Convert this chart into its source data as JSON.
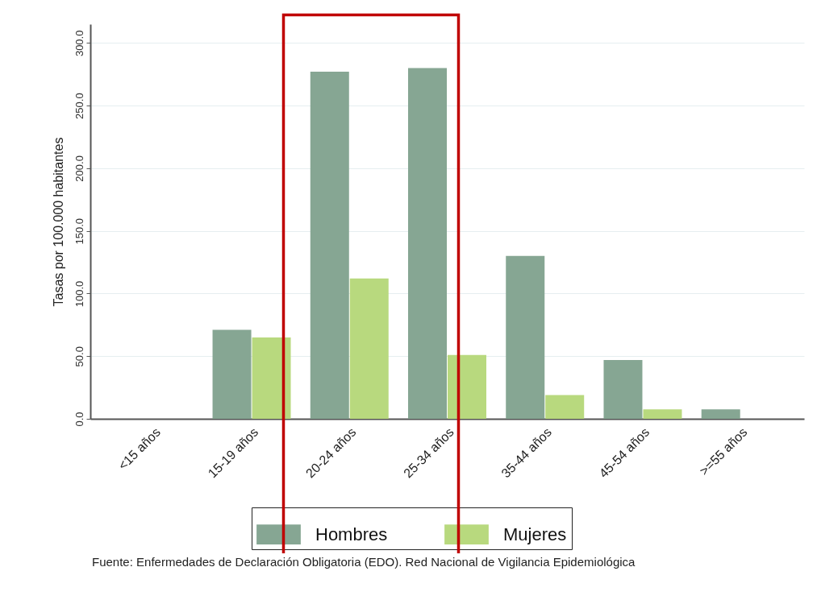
{
  "chart_data": {
    "type": "bar",
    "ylabel": "Tasas por 100.000 habitantes",
    "categories": [
      "<15 años",
      "15-19 años",
      "20-24 años",
      "25-34 años",
      "35-44 años",
      "45-54 años",
      ">=55 años"
    ],
    "series": [
      {
        "name": "Hombres",
        "color": "#86a693",
        "values": [
          0,
          71,
          277,
          280,
          130,
          47,
          7.5
        ]
      },
      {
        "name": "Mujeres",
        "color": "#b8d97e",
        "values": [
          0,
          65,
          112,
          51,
          19,
          7.5,
          0
        ]
      }
    ],
    "ylim": [
      0,
      315
    ],
    "yticks": [
      {
        "value": 0,
        "label": "0.0"
      },
      {
        "value": 50,
        "label": "50.0"
      },
      {
        "value": 100,
        "label": "100.0"
      },
      {
        "value": 150,
        "label": "150.0"
      },
      {
        "value": 200,
        "label": "200.0"
      },
      {
        "value": 250,
        "label": "250.0"
      },
      {
        "value": 300,
        "label": "300.0"
      }
    ],
    "grid": "y",
    "legend": "bottom",
    "annotations": [
      "Fuente: Enfermedades de Declaración Obligatoria (EDO). Red Nacional de Vigilancia Epidemiológica"
    ]
  }
}
